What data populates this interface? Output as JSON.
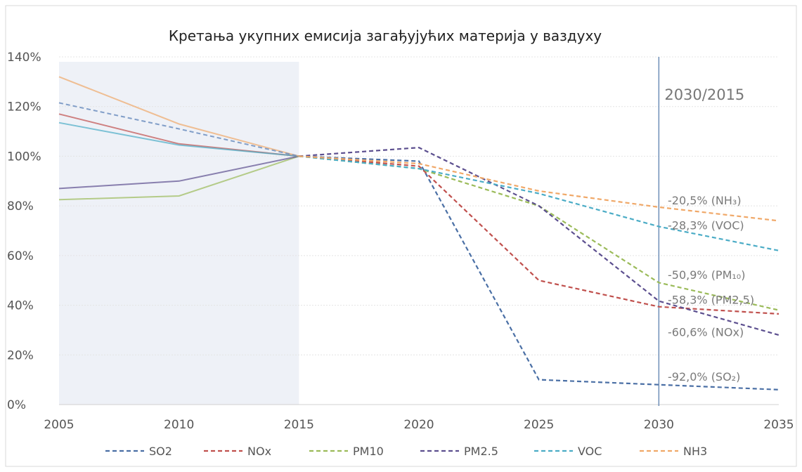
{
  "chart_data": {
    "type": "line",
    "title": "Кретања укупних емисија загађујућих материја у ваздуху",
    "xlabel": "",
    "ylabel": "",
    "x": [
      2005,
      2010,
      2015,
      2020,
      2025,
      2030,
      2035
    ],
    "x_ticks": [
      "2005",
      "2010",
      "2015",
      "2020",
      "2025",
      "2030",
      "2035"
    ],
    "y_ticks": [
      "0%",
      "20%",
      "40%",
      "60%",
      "80%",
      "100%",
      "120%",
      "140%"
    ],
    "ylim": [
      0,
      140
    ],
    "grid": true,
    "legend_position": "bottom",
    "shaded_period": [
      2005,
      2015
    ],
    "reference_marker": {
      "x": 2030,
      "label": "2030/2015"
    },
    "series": [
      {
        "name": "SO2",
        "color": "#4a6fa5",
        "values": [
          null,
          null,
          100,
          98,
          10,
          8,
          6
        ]
      },
      {
        "name": "NOx",
        "color": "#c0504d",
        "values": [
          117,
          105,
          100,
          96,
          50,
          39.4,
          36.5
        ]
      },
      {
        "name": "PM10",
        "color": "#9bbb59",
        "values": [
          82.5,
          84,
          100,
          95,
          80,
          49.1,
          38
        ]
      },
      {
        "name": "PM2.5",
        "color": "#5c4f8f",
        "values": [
          87,
          90,
          100,
          103.5,
          80,
          41.7,
          28
        ]
      },
      {
        "name": "VOC",
        "color": "#4bacc6",
        "values": [
          113.5,
          104.5,
          100,
          95,
          85,
          71.7,
          62
        ]
      },
      {
        "name": "NH3",
        "color": "#f0a868",
        "values": [
          132,
          113,
          100,
          97,
          86,
          79.5,
          74
        ]
      }
    ],
    "annotations": [
      {
        "text": "-20,5% (NH₃)",
        "y": 82
      },
      {
        "text": "-28,3% (VOC)",
        "y": 72
      },
      {
        "text": "-50,9% (PM₁₀)",
        "y": 52
      },
      {
        "text": "-58,3% (PM2,5)",
        "y": 42
      },
      {
        "text": "-60,6% (NOx)",
        "y": 29
      },
      {
        "text": "-92,0% (SO₂)",
        "y": 11
      }
    ]
  }
}
